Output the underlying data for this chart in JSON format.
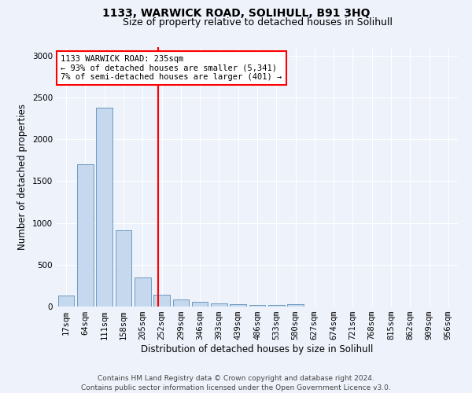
{
  "title": "1133, WARWICK ROAD, SOLIHULL, B91 3HQ",
  "subtitle": "Size of property relative to detached houses in Solihull",
  "xlabel": "Distribution of detached houses by size in Solihull",
  "ylabel": "Number of detached properties",
  "categories": [
    "17sqm",
    "64sqm",
    "111sqm",
    "158sqm",
    "205sqm",
    "252sqm",
    "299sqm",
    "346sqm",
    "393sqm",
    "439sqm",
    "486sqm",
    "533sqm",
    "580sqm",
    "627sqm",
    "674sqm",
    "721sqm",
    "768sqm",
    "815sqm",
    "862sqm",
    "909sqm",
    "956sqm"
  ],
  "values": [
    130,
    1700,
    2380,
    910,
    350,
    140,
    80,
    55,
    35,
    25,
    20,
    15,
    30,
    0,
    0,
    0,
    0,
    0,
    0,
    0,
    0
  ],
  "bar_color": "#c5d8ed",
  "bar_edge_color": "#5b8db8",
  "background_color": "#eef2fb",
  "grid_color": "#ffffff",
  "vline_color": "red",
  "vline_x_index": 4.83,
  "annotation_text": "1133 WARWICK ROAD: 235sqm\n← 93% of detached houses are smaller (5,341)\n7% of semi-detached houses are larger (401) →",
  "annotation_box_facecolor": "white",
  "annotation_box_edgecolor": "red",
  "ylim": [
    0,
    3100
  ],
  "yticks": [
    0,
    500,
    1000,
    1500,
    2000,
    2500,
    3000
  ],
  "footer": "Contains HM Land Registry data © Crown copyright and database right 2024.\nContains public sector information licensed under the Open Government Licence v3.0.",
  "title_fontsize": 10,
  "subtitle_fontsize": 9,
  "xlabel_fontsize": 8.5,
  "ylabel_fontsize": 8.5,
  "tick_fontsize": 7.5,
  "footer_fontsize": 6.5,
  "annot_fontsize": 7.5
}
